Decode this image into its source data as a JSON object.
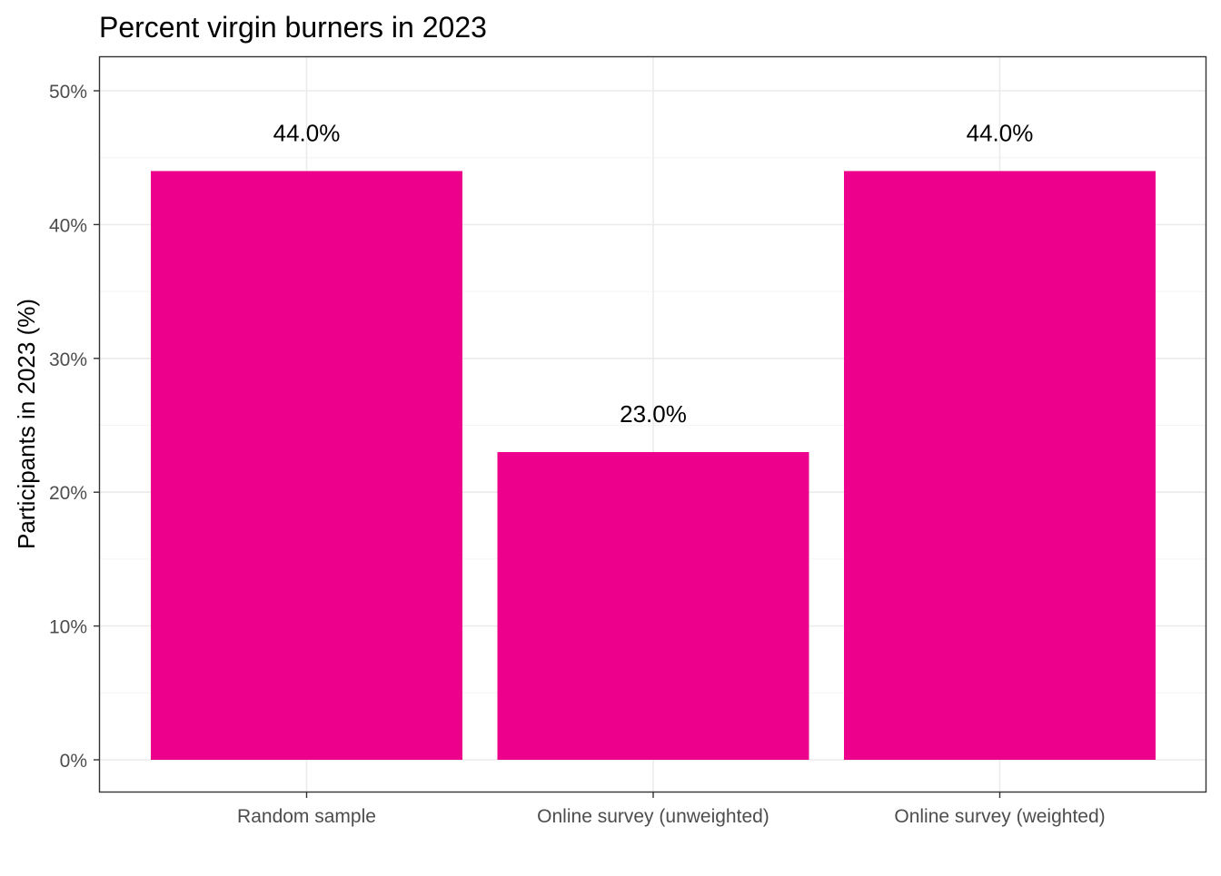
{
  "chart_data": {
    "type": "bar",
    "title": "Percent virgin burners in 2023",
    "xlabel": "",
    "ylabel": "Participants in 2023 (%)",
    "categories": [
      "Random sample",
      "Online survey (unweighted)",
      "Online survey (weighted)"
    ],
    "values": [
      44.0,
      23.0,
      44.0
    ],
    "value_labels": [
      "44.0%",
      "23.0%",
      "44.0%"
    ],
    "ylim": [
      0,
      52.5
    ],
    "yticks": [
      0,
      10,
      20,
      30,
      40,
      50
    ],
    "ytick_labels": [
      "0%",
      "10%",
      "20%",
      "30%",
      "40%",
      "50%"
    ],
    "grid": true,
    "legend": "none",
    "colors": {
      "bar": "#EC008C",
      "grid_major": "#ebebeb",
      "grid_minor": "#f4f4f4",
      "panel_border": "#333333",
      "tick_text": "#4d4d4d"
    }
  }
}
